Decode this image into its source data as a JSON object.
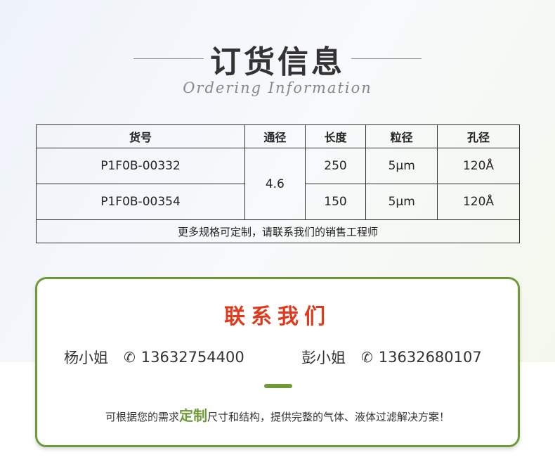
{
  "header": {
    "title": "订货信息",
    "subtitle": "Ordering Information"
  },
  "table": {
    "columns": [
      "货号",
      "通径",
      "长度",
      "粒径",
      "孔径"
    ],
    "rows": [
      {
        "part": "P1F0B-00332",
        "diameter": "4.6",
        "length": "250",
        "particle": "5μm",
        "pore": "120Å"
      },
      {
        "part": "P1F0B-00354",
        "diameter": "4.6",
        "length": "150",
        "particle": "5μm",
        "pore": "120Å"
      }
    ],
    "footer": "更多规格可定制，请联系我们的销售工程师"
  },
  "contact": {
    "title": "联系我们",
    "people": [
      {
        "name": "杨小姐",
        "phone": "13632754400",
        "icon": "phone-icon"
      },
      {
        "name": "彭小姐",
        "phone": "13632680107",
        "icon": "phone-icon"
      }
    ],
    "note_before": "可根据您的需求",
    "note_highlight": "定制",
    "note_after": "尺寸和结构，提供完整的气体、液体过滤解决方案！",
    "accent": "#6e9a3a",
    "title_color": "#e03a1e"
  }
}
